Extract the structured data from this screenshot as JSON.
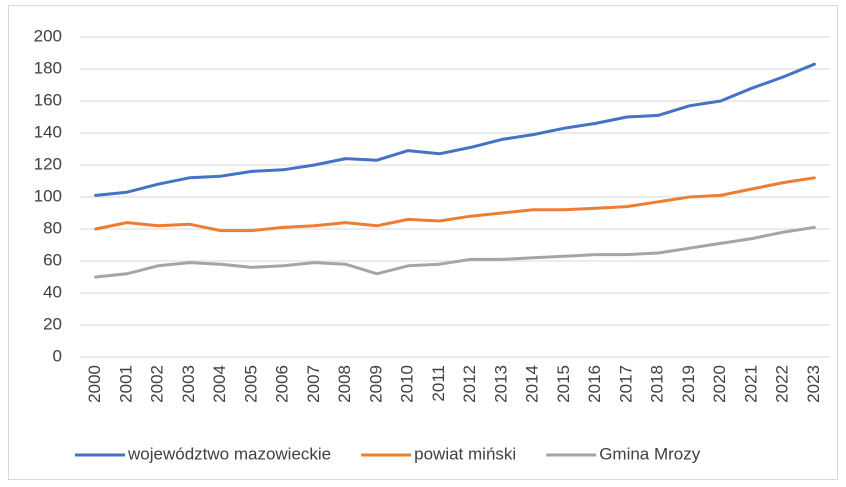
{
  "chart_data": {
    "type": "line",
    "categories": [
      "2000",
      "2001",
      "2002",
      "2003",
      "2004",
      "2005",
      "2006",
      "2007",
      "2008",
      "2009",
      "2010",
      "2011",
      "2012",
      "2013",
      "2014",
      "2015",
      "2016",
      "2017",
      "2018",
      "2019",
      "2020",
      "2021",
      "2022",
      "2023"
    ],
    "series": [
      {
        "name": "województwo mazowieckie",
        "color": "#4472c4",
        "values": [
          101,
          103,
          108,
          112,
          113,
          116,
          117,
          120,
          124,
          123,
          129,
          127,
          131,
          136,
          139,
          143,
          146,
          150,
          151,
          157,
          160,
          168,
          175,
          183
        ]
      },
      {
        "name": "powiat miński",
        "color": "#ed7d31",
        "values": [
          80,
          84,
          82,
          83,
          79,
          79,
          81,
          82,
          84,
          82,
          86,
          85,
          88,
          90,
          92,
          92,
          93,
          94,
          97,
          100,
          101,
          105,
          109,
          112
        ]
      },
      {
        "name": "Gmina Mrozy",
        "color": "#a5a5a5",
        "values": [
          50,
          52,
          57,
          59,
          58,
          56,
          57,
          59,
          58,
          52,
          57,
          58,
          61,
          61,
          62,
          63,
          64,
          64,
          65,
          68,
          71,
          74,
          78,
          81
        ]
      }
    ],
    "ylim": [
      0,
      200
    ],
    "yticks": [
      0,
      20,
      40,
      60,
      80,
      100,
      120,
      140,
      160,
      180,
      200
    ],
    "grid": true,
    "legend": "bottom"
  }
}
